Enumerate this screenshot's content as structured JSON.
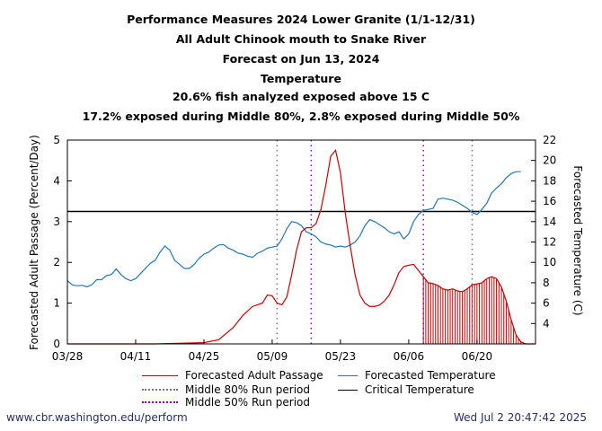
{
  "chart_data": {
    "type": "line",
    "title_lines": [
      "Performance Measures 2024 Lower Granite (1/1-12/31)",
      "All Adult Chinook mouth to Snake River",
      "Forecast on Jun 13, 2024",
      "Temperature",
      "20.6% fish analyzed exposed above 15 C",
      "17.2% exposed during Middle 80%, 2.8% exposed during Middle 50%"
    ],
    "ylabel_left": "Forecasted Adult Passage (Percent/Day)",
    "ylabel_right": "Forecasted Temperature (C)",
    "x_axis": {
      "start_date": "03/28",
      "end_date": "07/02",
      "tick_labels": [
        "03/28",
        "04/11",
        "04/25",
        "05/09",
        "05/23",
        "06/06",
        "06/20"
      ]
    },
    "y_left": {
      "lim": [
        0,
        5
      ],
      "ticks": [
        0,
        1,
        2,
        3,
        4,
        5
      ]
    },
    "y_right": {
      "lim": [
        2,
        22
      ],
      "ticks": [
        4,
        6,
        8,
        10,
        12,
        14,
        16,
        18,
        20,
        22
      ]
    },
    "critical_temperature": 15,
    "middle_80_period": [
      "05/10",
      "06/19"
    ],
    "middle_50_period": [
      "05/17",
      "06/09"
    ],
    "forecast_start": "06/09",
    "passage": [
      {
        "x": "03/28",
        "y": 0.0
      },
      {
        "x": "04/15",
        "y": 0.0
      },
      {
        "x": "04/25",
        "y": 0.03
      },
      {
        "x": "04/28",
        "y": 0.1
      },
      {
        "x": "05/01",
        "y": 0.4
      },
      {
        "x": "05/03",
        "y": 0.7
      },
      {
        "x": "05/05",
        "y": 0.92
      },
      {
        "x": "05/07",
        "y": 1.0
      },
      {
        "x": "05/08",
        "y": 1.2
      },
      {
        "x": "05/09",
        "y": 1.18
      },
      {
        "x": "05/10",
        "y": 1.0
      },
      {
        "x": "05/11",
        "y": 0.96
      },
      {
        "x": "05/12",
        "y": 1.15
      },
      {
        "x": "05/13",
        "y": 1.7
      },
      {
        "x": "05/14",
        "y": 2.3
      },
      {
        "x": "05/15",
        "y": 2.75
      },
      {
        "x": "05/16",
        "y": 2.85
      },
      {
        "x": "05/17",
        "y": 2.85
      },
      {
        "x": "05/18",
        "y": 2.95
      },
      {
        "x": "05/19",
        "y": 3.3
      },
      {
        "x": "05/20",
        "y": 3.9
      },
      {
        "x": "05/21",
        "y": 4.6
      },
      {
        "x": "05/22",
        "y": 4.75
      },
      {
        "x": "05/23",
        "y": 4.2
      },
      {
        "x": "05/24",
        "y": 3.2
      },
      {
        "x": "05/25",
        "y": 2.4
      },
      {
        "x": "05/26",
        "y": 1.7
      },
      {
        "x": "05/27",
        "y": 1.2
      },
      {
        "x": "05/28",
        "y": 1.0
      },
      {
        "x": "05/29",
        "y": 0.92
      },
      {
        "x": "05/30",
        "y": 0.92
      },
      {
        "x": "05/31",
        "y": 0.95
      },
      {
        "x": "06/01",
        "y": 1.05
      },
      {
        "x": "06/02",
        "y": 1.2
      },
      {
        "x": "06/03",
        "y": 1.45
      },
      {
        "x": "06/04",
        "y": 1.75
      },
      {
        "x": "06/05",
        "y": 1.9
      },
      {
        "x": "06/06",
        "y": 1.93
      },
      {
        "x": "06/07",
        "y": 1.95
      },
      {
        "x": "06/08",
        "y": 1.8
      },
      {
        "x": "06/09",
        "y": 1.65
      },
      {
        "x": "06/10",
        "y": 1.5
      },
      {
        "x": "06/11",
        "y": 1.48
      },
      {
        "x": "06/12",
        "y": 1.43
      },
      {
        "x": "06/13",
        "y": 1.35
      },
      {
        "x": "06/14",
        "y": 1.32
      },
      {
        "x": "06/15",
        "y": 1.35
      },
      {
        "x": "06/16",
        "y": 1.3
      },
      {
        "x": "06/17",
        "y": 1.28
      },
      {
        "x": "06/18",
        "y": 1.35
      },
      {
        "x": "06/19",
        "y": 1.45
      },
      {
        "x": "06/20",
        "y": 1.47
      },
      {
        "x": "06/21",
        "y": 1.5
      },
      {
        "x": "06/22",
        "y": 1.6
      },
      {
        "x": "06/23",
        "y": 1.65
      },
      {
        "x": "06/24",
        "y": 1.6
      },
      {
        "x": "06/25",
        "y": 1.4
      },
      {
        "x": "06/26",
        "y": 1.05
      },
      {
        "x": "06/27",
        "y": 0.6
      },
      {
        "x": "06/28",
        "y": 0.22
      },
      {
        "x": "06/29",
        "y": 0.05
      },
      {
        "x": "06/30",
        "y": 0.0
      },
      {
        "x": "07/02",
        "y": 0.0
      }
    ],
    "temperature": [
      {
        "x": "03/28",
        "y": 8.2
      },
      {
        "x": "03/29",
        "y": 7.8
      },
      {
        "x": "03/30",
        "y": 7.7
      },
      {
        "x": "03/31",
        "y": 7.75
      },
      {
        "x": "04/01",
        "y": 7.6
      },
      {
        "x": "04/02",
        "y": 7.8
      },
      {
        "x": "04/03",
        "y": 8.3
      },
      {
        "x": "04/04",
        "y": 8.3
      },
      {
        "x": "04/05",
        "y": 8.7
      },
      {
        "x": "04/06",
        "y": 8.8
      },
      {
        "x": "04/07",
        "y": 9.35
      },
      {
        "x": "04/08",
        "y": 8.8
      },
      {
        "x": "04/09",
        "y": 8.4
      },
      {
        "x": "04/10",
        "y": 8.2
      },
      {
        "x": "04/11",
        "y": 8.4
      },
      {
        "x": "04/12",
        "y": 8.9
      },
      {
        "x": "04/13",
        "y": 9.4
      },
      {
        "x": "04/14",
        "y": 9.9
      },
      {
        "x": "04/15",
        "y": 10.2
      },
      {
        "x": "04/16",
        "y": 11.0
      },
      {
        "x": "04/17",
        "y": 11.6
      },
      {
        "x": "04/18",
        "y": 11.2
      },
      {
        "x": "04/19",
        "y": 10.2
      },
      {
        "x": "04/20",
        "y": 9.8
      },
      {
        "x": "04/21",
        "y": 9.4
      },
      {
        "x": "04/22",
        "y": 9.4
      },
      {
        "x": "04/23",
        "y": 9.8
      },
      {
        "x": "04/24",
        "y": 10.4
      },
      {
        "x": "04/25",
        "y": 10.8
      },
      {
        "x": "04/26",
        "y": 11.0
      },
      {
        "x": "04/27",
        "y": 11.4
      },
      {
        "x": "04/28",
        "y": 11.7
      },
      {
        "x": "04/29",
        "y": 11.75
      },
      {
        "x": "04/30",
        "y": 11.4
      },
      {
        "x": "05/01",
        "y": 11.2
      },
      {
        "x": "05/02",
        "y": 10.9
      },
      {
        "x": "05/03",
        "y": 10.8
      },
      {
        "x": "05/04",
        "y": 10.6
      },
      {
        "x": "05/05",
        "y": 10.5
      },
      {
        "x": "05/06",
        "y": 10.9
      },
      {
        "x": "05/07",
        "y": 11.1
      },
      {
        "x": "05/08",
        "y": 11.4
      },
      {
        "x": "05/09",
        "y": 11.5
      },
      {
        "x": "05/10",
        "y": 11.6
      },
      {
        "x": "05/11",
        "y": 12.3
      },
      {
        "x": "05/12",
        "y": 13.3
      },
      {
        "x": "05/13",
        "y": 14.0
      },
      {
        "x": "05/14",
        "y": 13.9
      },
      {
        "x": "05/15",
        "y": 13.6
      },
      {
        "x": "05/16",
        "y": 13.0
      },
      {
        "x": "05/17",
        "y": 12.8
      },
      {
        "x": "05/18",
        "y": 12.5
      },
      {
        "x": "05/19",
        "y": 12.0
      },
      {
        "x": "05/20",
        "y": 11.8
      },
      {
        "x": "05/21",
        "y": 11.7
      },
      {
        "x": "05/22",
        "y": 11.5
      },
      {
        "x": "05/23",
        "y": 11.6
      },
      {
        "x": "05/24",
        "y": 11.5
      },
      {
        "x": "05/25",
        "y": 11.7
      },
      {
        "x": "05/26",
        "y": 12.0
      },
      {
        "x": "05/27",
        "y": 12.6
      },
      {
        "x": "05/28",
        "y": 13.6
      },
      {
        "x": "05/29",
        "y": 14.2
      },
      {
        "x": "05/30",
        "y": 14.0
      },
      {
        "x": "05/31",
        "y": 13.7
      },
      {
        "x": "06/01",
        "y": 13.4
      },
      {
        "x": "06/02",
        "y": 13.0
      },
      {
        "x": "06/03",
        "y": 12.8
      },
      {
        "x": "06/04",
        "y": 13.0
      },
      {
        "x": "06/05",
        "y": 12.3
      },
      {
        "x": "06/06",
        "y": 12.8
      },
      {
        "x": "06/07",
        "y": 14.0
      },
      {
        "x": "06/08",
        "y": 14.7
      },
      {
        "x": "06/09",
        "y": 15.1
      },
      {
        "x": "06/10",
        "y": 15.2
      },
      {
        "x": "06/11",
        "y": 15.3
      },
      {
        "x": "06/12",
        "y": 16.2
      },
      {
        "x": "06/13",
        "y": 16.3
      },
      {
        "x": "06/14",
        "y": 16.2
      },
      {
        "x": "06/15",
        "y": 16.1
      },
      {
        "x": "06/16",
        "y": 15.9
      },
      {
        "x": "06/17",
        "y": 15.6
      },
      {
        "x": "06/18",
        "y": 15.3
      },
      {
        "x": "06/19",
        "y": 14.9
      },
      {
        "x": "06/20",
        "y": 14.7
      },
      {
        "x": "06/21",
        "y": 15.2
      },
      {
        "x": "06/22",
        "y": 15.8
      },
      {
        "x": "06/23",
        "y": 16.8
      },
      {
        "x": "06/24",
        "y": 17.3
      },
      {
        "x": "06/25",
        "y": 17.7
      },
      {
        "x": "06/26",
        "y": 18.3
      },
      {
        "x": "06/27",
        "y": 18.7
      },
      {
        "x": "06/28",
        "y": 18.9
      },
      {
        "x": "06/29",
        "y": 18.9
      }
    ],
    "legend": {
      "passage": "Forecasted Adult Passage",
      "temperature": "Forecasted Temperature",
      "middle80": "Middle 80% Run period",
      "critical": "Critical Temperature",
      "middle50": "Middle 50% Run period"
    },
    "colors": {
      "passage": "#cc0000",
      "temperature": "#1f78b4",
      "middle80": "#7a6ea8",
      "middle50": "#9900cc",
      "critical": "#000000"
    }
  },
  "footer": {
    "left": "www.cbr.washington.edu/perform",
    "right": "Wed Jul  2 20:47:42 2025"
  }
}
